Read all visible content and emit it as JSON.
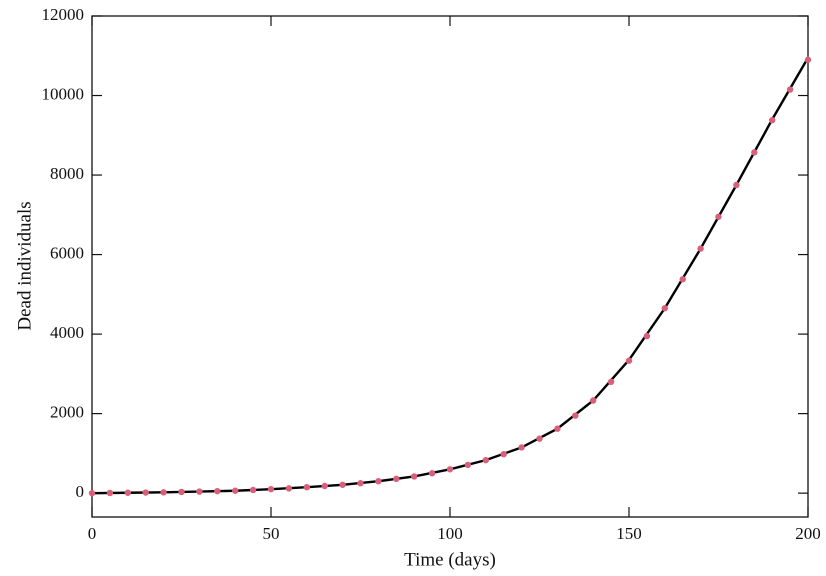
{
  "chart_data": {
    "type": "line",
    "xlabel": "Time (days)",
    "ylabel": "Dead individuals",
    "xlim": [
      0,
      200
    ],
    "ylim": [
      -600,
      12000
    ],
    "xticks": [
      0,
      50,
      100,
      150,
      200
    ],
    "yticks": [
      0,
      2000,
      4000,
      6000,
      8000,
      10000,
      12000
    ],
    "grid": false,
    "series": [
      {
        "color": "#000000",
        "line": true,
        "x": [
          0,
          10,
          20,
          30,
          40,
          50,
          60,
          70,
          80,
          90,
          100,
          110,
          120,
          130,
          140,
          150,
          160,
          170,
          180,
          190,
          200
        ],
        "values": [
          0,
          10,
          20,
          40,
          60,
          100,
          150,
          210,
          300,
          420,
          600,
          830,
          1150,
          1620,
          2330,
          3350,
          4650,
          6150,
          7750,
          9400,
          10950
        ]
      },
      {
        "color": "#d9607a",
        "line": false,
        "marker": "circle",
        "x": [
          0,
          5,
          10,
          15,
          20,
          25,
          30,
          35,
          40,
          45,
          50,
          55,
          60,
          65,
          70,
          75,
          80,
          85,
          90,
          95,
          100,
          105,
          110,
          115,
          120,
          125,
          130,
          135,
          140,
          145,
          150,
          155,
          160,
          165,
          170,
          175,
          180,
          185,
          190,
          195,
          200
        ],
        "values": [
          0,
          5,
          10,
          15,
          20,
          30,
          40,
          50,
          60,
          80,
          100,
          120,
          150,
          180,
          210,
          250,
          300,
          360,
          420,
          500,
          600,
          710,
          830,
          980,
          1150,
          1370,
          1620,
          1950,
          2330,
          2800,
          3330,
          3950,
          4650,
          5380,
          6150,
          6950,
          7750,
          8570,
          9380,
          10150,
          10900
        ]
      }
    ]
  }
}
